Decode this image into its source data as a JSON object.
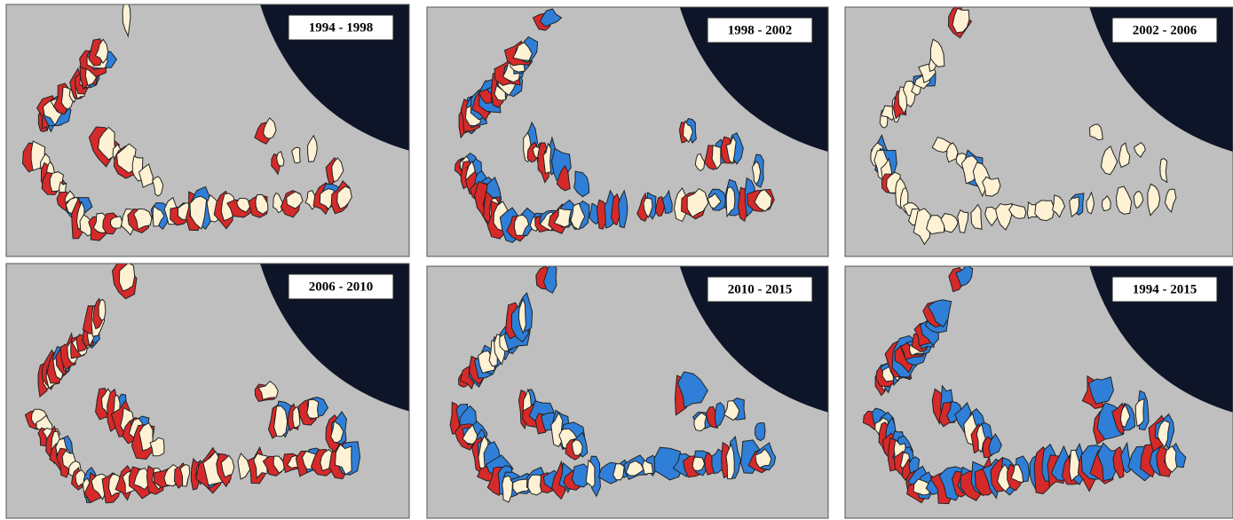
{
  "panels": [
    {
      "label": "1994 - 1998"
    },
    {
      "label": "1998 - 2002"
    },
    {
      "label": "2002 - 2006"
    },
    {
      "label": "2006 - 2010"
    },
    {
      "label": "2010 - 2015"
    },
    {
      "label": "1994 - 2015"
    }
  ]
}
